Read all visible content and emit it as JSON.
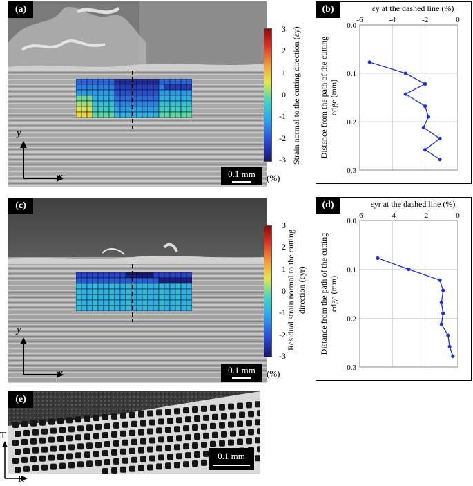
{
  "panels": {
    "a": {
      "tag": "(a)",
      "scale_bar": "0.1 mm",
      "axis_x": "x",
      "axis_y": "y",
      "colorbar": {
        "ticks": [
          "3",
          "2",
          "1",
          "0",
          "-1",
          "-2",
          "-3"
        ],
        "label": "Strain normal to the cutting direction (εy)",
        "unit": "(%)"
      }
    },
    "b": {
      "tag": "(b)",
      "chart_title": "εy  at the dashed line (%)",
      "ylabel_line1": "Distance from the path of the cutting",
      "ylabel_line2": "edge (mm)"
    },
    "c": {
      "tag": "(c)",
      "scale_bar": "0.1 mm",
      "axis_x": "x",
      "axis_y": "y",
      "colorbar": {
        "ticks": [
          "3",
          "2",
          "1",
          "0",
          "-1",
          "-2",
          "-3"
        ],
        "label_line1": "Residual strain normal to the cutting",
        "label_line2": "direction (εyr)",
        "unit": "(%)"
      }
    },
    "d": {
      "tag": "(d)",
      "chart_title": "εyr  at the dashed line (%)",
      "ylabel_line1": "Distance from the path of the cutting",
      "ylabel_line2": "edge (mm)"
    },
    "e": {
      "tag": "(e)",
      "scale_bar": "0.1 mm",
      "axis_t": "T",
      "axis_r": "R"
    }
  },
  "colors": {
    "line": "#1f2fd6",
    "grid": "#d0d4e8",
    "colormap_high": "#c81e1e",
    "colormap_low": "#1a1a8c"
  },
  "chart_data": [
    {
      "type": "line",
      "title": "εy  at the dashed line (%)",
      "xlabel": "εy  at the dashed line (%)",
      "ylabel": "Distance from the path of the cutting edge (mm)",
      "xlim": [
        -6,
        0
      ],
      "ylim": [
        0,
        0.3
      ],
      "y_inverted": true,
      "x_axis_position": "top",
      "xticks": [
        "-6",
        "-4",
        "-2",
        "0"
      ],
      "yticks": [
        "0.0",
        "0.1",
        "0.2",
        "0.3"
      ],
      "grid": true,
      "series": [
        {
          "x": [
            -5.4,
            -3.2,
            -2.0,
            -3.2,
            -2.0,
            -1.8,
            -2.1,
            -1.1,
            -2.0,
            -1.1
          ],
          "y": [
            0.077,
            0.1,
            0.122,
            0.143,
            0.168,
            0.19,
            0.212,
            0.235,
            0.258,
            0.278
          ]
        }
      ]
    },
    {
      "type": "line",
      "title": "εyr  at the dashed line (%)",
      "xlabel": "εyr  at the dashed line (%)",
      "ylabel": "Distance from the path of the cutting edge (mm)",
      "xlim": [
        -6,
        0
      ],
      "ylim": [
        0,
        0.3
      ],
      "y_inverted": true,
      "x_axis_position": "top",
      "xticks": [
        "-6",
        "-4",
        "-2",
        "0"
      ],
      "yticks": [
        "0.0",
        "0.1",
        "0.2",
        "0.3"
      ],
      "grid": true,
      "series": [
        {
          "x": [
            -4.9,
            -3.0,
            -1.1,
            -0.9,
            -1.0,
            -0.9,
            -1.0,
            -0.6,
            -0.5,
            -0.3
          ],
          "y": [
            0.077,
            0.1,
            0.122,
            0.143,
            0.168,
            0.19,
            0.212,
            0.235,
            0.258,
            0.278
          ]
        }
      ]
    }
  ]
}
